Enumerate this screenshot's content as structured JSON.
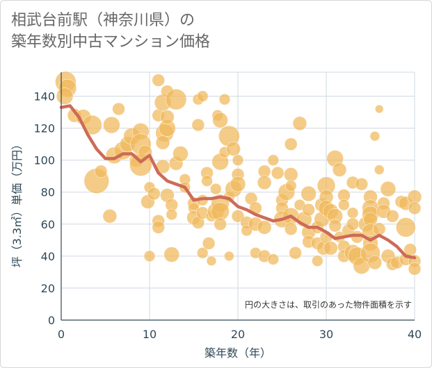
{
  "title_line1": "相武台前駅（神奈川県）の",
  "title_line2": "築年数別中古マンション価格",
  "chart_data": {
    "type": "scatter",
    "xlabel": "築年数（年）",
    "ylabel": "坪（3.3㎡）単価（万円）",
    "xlim": [
      0,
      40
    ],
    "ylim": [
      0,
      155
    ],
    "x_ticks": [
      "0",
      "10",
      "20",
      "30",
      "40"
    ],
    "y_ticks": [
      "0",
      "20",
      "40",
      "60",
      "80",
      "100",
      "120",
      "140"
    ],
    "note": "円の大きさは、取引のあった物件面積を示す",
    "grid": true,
    "bubble_color": "#f0b85a",
    "line_color": "#cd6b57",
    "trend": {
      "x": [
        0,
        1,
        2,
        3,
        4,
        5,
        6,
        7,
        8,
        9,
        10,
        11,
        12,
        13,
        14,
        15,
        16,
        17,
        18,
        19,
        20,
        21,
        22,
        23,
        24,
        25,
        26,
        27,
        28,
        29,
        30,
        31,
        32,
        33,
        34,
        35,
        36,
        37,
        38,
        39,
        40
      ],
      "y": [
        133,
        134,
        127,
        116,
        107,
        101,
        101,
        104,
        104,
        99,
        103,
        92,
        87,
        85,
        83,
        75,
        76,
        76,
        77,
        76,
        71,
        69,
        66,
        64,
        62,
        63,
        65,
        61,
        58,
        58,
        55,
        51,
        52,
        53,
        53,
        50,
        53,
        50,
        46,
        40,
        39
      ]
    },
    "points": [
      [
        0.5,
        149,
        15
      ],
      [
        0.7,
        145,
        13
      ],
      [
        0.4,
        140,
        12
      ],
      [
        1.5,
        128,
        10
      ],
      [
        2.5,
        127,
        11
      ],
      [
        3.5,
        122,
        14
      ],
      [
        4,
        87,
        18
      ],
      [
        4.5,
        93,
        9
      ],
      [
        5.5,
        65,
        10
      ],
      [
        5.7,
        122,
        12
      ],
      [
        6,
        103,
        12
      ],
      [
        6.5,
        132,
        9
      ],
      [
        7,
        106,
        13
      ],
      [
        7.5,
        110,
        11
      ],
      [
        8,
        115,
        12
      ],
      [
        8.5,
        100,
        10
      ],
      [
        9,
        118,
        12
      ],
      [
        9,
        110,
        15
      ],
      [
        9,
        97,
        16
      ],
      [
        9.5,
        105,
        10
      ],
      [
        9.8,
        74,
        10
      ],
      [
        10,
        83,
        8
      ],
      [
        10,
        40,
        8
      ],
      [
        10.5,
        79,
        9
      ],
      [
        11,
        62,
        9
      ],
      [
        11,
        58,
        9
      ],
      [
        11,
        128,
        9
      ],
      [
        11,
        150,
        9
      ],
      [
        11.5,
        136,
        12
      ],
      [
        11.7,
        117,
        13
      ],
      [
        11.5,
        111,
        10
      ],
      [
        11.5,
        96,
        10
      ],
      [
        12,
        120,
        12
      ],
      [
        12,
        143,
        9
      ],
      [
        12,
        127,
        10
      ],
      [
        12,
        78,
        10
      ],
      [
        12.5,
        72,
        9
      ],
      [
        12.5,
        66,
        8
      ],
      [
        12.5,
        41,
        11
      ],
      [
        13,
        138,
        15
      ],
      [
        13,
        98,
        10
      ],
      [
        13.5,
        104,
        11
      ],
      [
        14,
        88,
        8
      ],
      [
        14,
        83,
        8
      ],
      [
        15,
        73,
        9
      ],
      [
        15,
        70,
        8
      ],
      [
        15,
        64,
        10
      ],
      [
        15.5,
        138,
        8
      ],
      [
        15.5,
        122,
        9
      ],
      [
        15.5,
        61,
        9
      ],
      [
        16,
        140,
        8
      ],
      [
        16,
        75,
        8
      ],
      [
        16,
        67,
        9
      ],
      [
        16,
        42,
        8
      ],
      [
        16.5,
        92,
        9
      ],
      [
        16.5,
        87,
        8
      ],
      [
        16.7,
        48,
        9
      ],
      [
        17,
        65,
        8
      ],
      [
        17,
        37,
        7
      ],
      [
        17.5,
        82,
        8
      ],
      [
        17.5,
        68,
        12
      ],
      [
        17.7,
        128,
        8
      ],
      [
        18,
        125,
        11
      ],
      [
        18,
        99,
        12
      ],
      [
        18,
        73,
        13
      ],
      [
        18,
        68,
        13
      ],
      [
        18,
        60,
        9
      ],
      [
        18.5,
        105,
        8
      ],
      [
        18.5,
        138,
        8
      ],
      [
        19,
        77,
        8
      ],
      [
        19,
        115,
        15
      ],
      [
        19,
        40,
        7
      ],
      [
        19.5,
        107,
        10
      ],
      [
        19.5,
        82,
        12
      ],
      [
        20,
        91,
        9
      ],
      [
        20,
        85,
        11
      ],
      [
        20,
        100,
        8
      ],
      [
        20,
        65,
        9
      ],
      [
        21,
        61,
        9
      ],
      [
        21,
        56,
        8
      ],
      [
        21.5,
        76,
        9
      ],
      [
        22,
        70,
        9
      ],
      [
        22,
        42,
        8
      ],
      [
        22,
        60,
        10
      ],
      [
        23,
        93,
        9
      ],
      [
        23,
        86,
        10
      ],
      [
        23,
        58,
        10
      ],
      [
        23,
        40,
        9
      ],
      [
        24,
        100,
        8
      ],
      [
        24,
        38,
        8
      ],
      [
        24.5,
        92,
        9
      ],
      [
        25,
        75,
        9
      ],
      [
        25,
        70,
        9
      ],
      [
        25,
        63,
        12
      ],
      [
        25.5,
        80,
        12
      ],
      [
        26,
        91,
        10
      ],
      [
        26,
        110,
        9
      ],
      [
        26,
        84,
        8
      ],
      [
        26,
        65,
        12
      ],
      [
        26,
        57,
        9
      ],
      [
        26.5,
        42,
        9
      ],
      [
        27,
        123,
        10
      ],
      [
        27,
        72,
        8
      ],
      [
        27.5,
        63,
        11
      ],
      [
        28,
        79,
        11
      ],
      [
        28,
        69,
        9
      ],
      [
        28,
        55,
        10
      ],
      [
        28,
        49,
        9
      ],
      [
        29,
        58,
        9
      ],
      [
        29,
        48,
        9
      ],
      [
        29,
        37,
        8
      ],
      [
        29.5,
        63,
        11
      ],
      [
        29.5,
        72,
        10
      ],
      [
        29.7,
        45,
        10
      ],
      [
        30,
        84,
        13
      ],
      [
        30,
        77,
        10
      ],
      [
        30,
        70,
        11
      ],
      [
        30,
        52,
        9
      ],
      [
        30.5,
        68,
        11
      ],
      [
        30.5,
        45,
        10
      ],
      [
        31,
        101,
        12
      ],
      [
        31,
        65,
        11
      ],
      [
        31,
        59,
        9
      ],
      [
        31.5,
        94,
        10
      ],
      [
        31.5,
        52,
        8
      ],
      [
        32,
        78,
        9
      ],
      [
        32,
        72,
        8
      ],
      [
        32,
        46,
        9
      ],
      [
        32,
        40,
        9
      ],
      [
        32.5,
        56,
        9
      ],
      [
        33,
        86,
        9
      ],
      [
        33,
        67,
        8
      ],
      [
        33,
        60,
        9
      ],
      [
        33,
        42,
        12
      ],
      [
        33.5,
        52,
        9
      ],
      [
        33.5,
        40,
        13
      ],
      [
        34,
        85,
        9
      ],
      [
        34,
        34,
        12
      ],
      [
        34.5,
        60,
        11
      ],
      [
        35,
        77,
        10
      ],
      [
        35,
        70,
        12
      ],
      [
        35,
        66,
        12
      ],
      [
        35,
        63,
        10
      ],
      [
        35,
        55,
        12
      ],
      [
        35,
        48,
        11
      ],
      [
        35,
        42,
        14
      ],
      [
        35.5,
        115,
        7
      ],
      [
        35.5,
        36,
        10
      ],
      [
        36,
        132,
        6
      ],
      [
        36,
        94,
        7
      ],
      [
        36,
        57,
        9
      ],
      [
        36.5,
        73,
        9
      ],
      [
        36.5,
        68,
        10
      ],
      [
        37,
        82,
        11
      ],
      [
        37,
        40,
        10
      ],
      [
        37.5,
        65,
        9
      ],
      [
        37.5,
        35,
        9
      ],
      [
        38,
        36,
        9
      ],
      [
        38.5,
        74,
        9
      ],
      [
        39,
        58,
        14
      ],
      [
        39,
        73,
        10
      ],
      [
        39,
        38,
        9
      ],
      [
        39.5,
        44,
        9
      ],
      [
        40,
        77,
        10
      ],
      [
        40,
        70,
        9
      ],
      [
        40,
        37,
        9
      ],
      [
        40,
        32,
        9
      ]
    ]
  }
}
